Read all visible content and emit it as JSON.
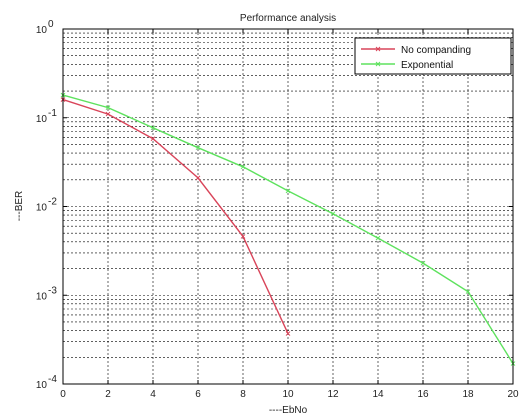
{
  "chart_data": {
    "type": "line",
    "title": "Performance analysis",
    "xlabel": "----EbNo",
    "ylabel": "---BER",
    "x_scale": "linear",
    "y_scale": "log",
    "xlim": [
      0,
      20
    ],
    "ylim": [
      0.0001,
      1
    ],
    "grid": "on (major and minor, dashed)",
    "legend_position": "top-right",
    "x_ticks": [
      "0",
      "2",
      "4",
      "6",
      "8",
      "10",
      "12",
      "14",
      "16",
      "18",
      "20"
    ],
    "y_ticks": [
      {
        "value": 1,
        "mantissa": "10",
        "exponent": "0"
      },
      {
        "value": 0.1,
        "mantissa": "10",
        "exponent": "-1"
      },
      {
        "value": 0.01,
        "mantissa": "10",
        "exponent": "-2"
      },
      {
        "value": 0.001,
        "mantissa": "10",
        "exponent": "-3"
      },
      {
        "value": 0.0001,
        "mantissa": "10",
        "exponent": "-4"
      }
    ],
    "series": [
      {
        "name": "No companding",
        "color": "#d9455a",
        "x": [
          0,
          2,
          4,
          6,
          8,
          10
        ],
        "y": [
          0.16,
          0.11,
          0.058,
          0.021,
          0.0046,
          0.00037
        ]
      },
      {
        "name": "Exponential",
        "color": "#5ee25e",
        "x": [
          0,
          2,
          4,
          6,
          8,
          10,
          12,
          14,
          16,
          18,
          20
        ],
        "y": [
          0.18,
          0.13,
          0.077,
          0.046,
          0.028,
          0.015,
          0.0083,
          0.0044,
          0.0023,
          0.0011,
          0.00017
        ]
      }
    ]
  }
}
